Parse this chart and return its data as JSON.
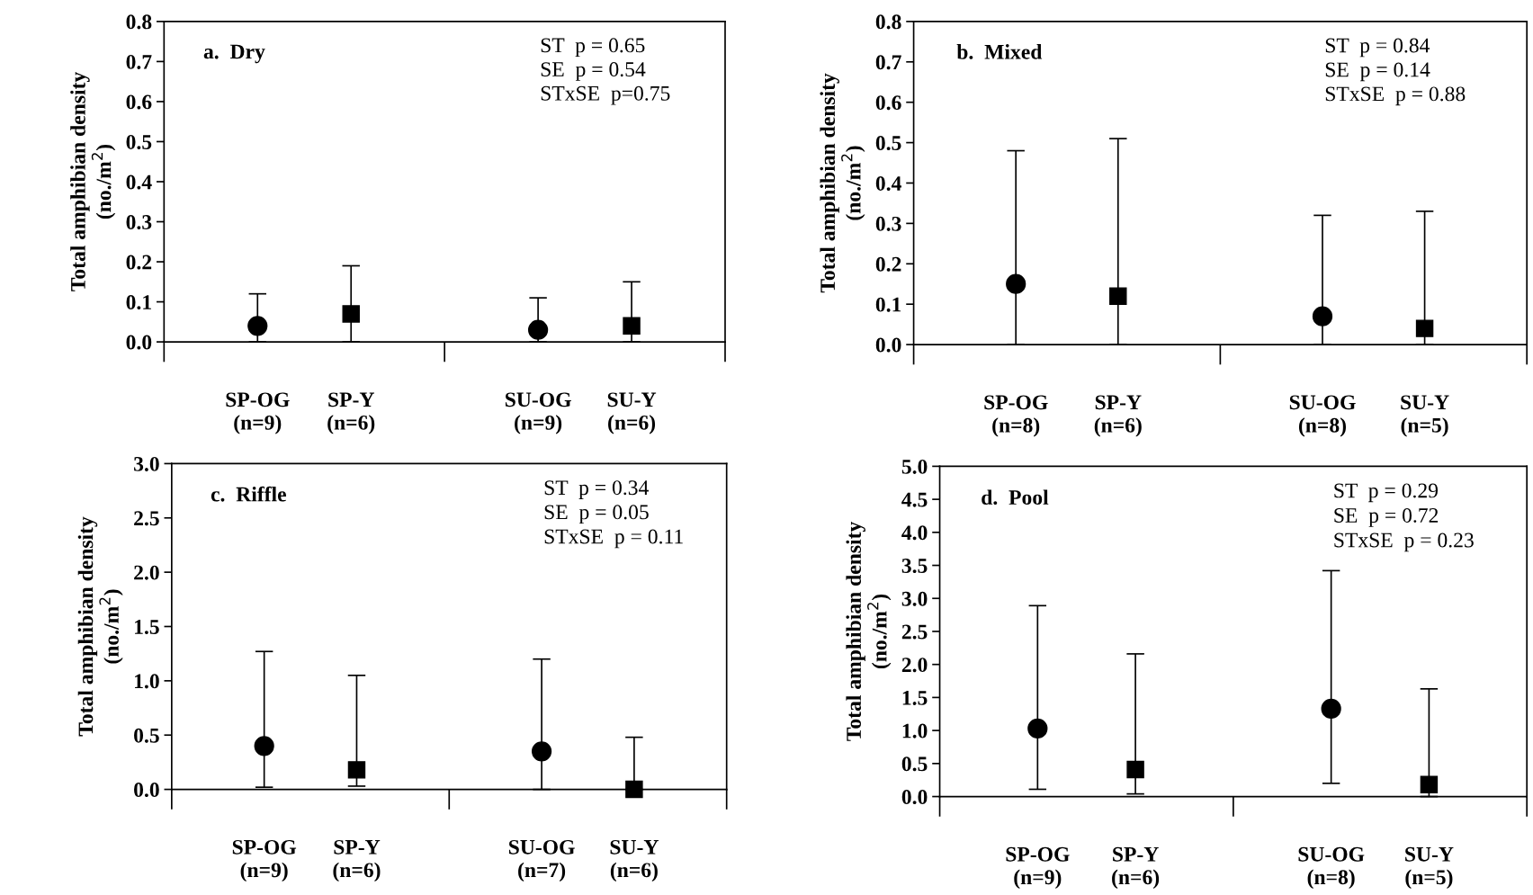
{
  "chart_data": [
    {
      "type": "scatter",
      "title": "a.  Dry",
      "ylabel": "Total amphibian density\n(no./m$^{2}$)",
      "categories": [
        "SP-OG\n(n=9)",
        "SP-Y\n(n=6)",
        null,
        "SU-OG\n(n=9)",
        "SU-Y\n(n=6)"
      ],
      "ylim": [
        0,
        0.8
      ],
      "yticks": [
        {
          "value": 0,
          "label": "0.0"
        },
        0.1,
        0.2,
        0.3,
        0.4,
        0.5,
        0.6,
        0.7,
        0.8
      ],
      "annotations": [
        "ST  p = 0.65",
        "SE  p = 0.54",
        "STxSE  p=0.75"
      ],
      "series": [
        {
          "color": "#000000",
          "marker": "circle",
          "values": [
            0.04,
            null,
            null,
            0.03,
            null
          ],
          "errors": [
            [
              0.0,
              0.12
            ],
            null,
            null,
            [
              0.0,
              0.11
            ],
            null
          ]
        },
        {
          "color": "#000000",
          "marker": "square",
          "values": [
            null,
            0.07,
            null,
            null,
            0.04
          ],
          "errors": [
            null,
            [
              0.0,
              0.19
            ],
            null,
            null,
            [
              0.0,
              0.15
            ]
          ]
        }
      ]
    },
    {
      "type": "scatter",
      "title": "b.  Mixed",
      "ylabel": "Total amphibian density\n(no./m$^{2}$)",
      "categories": [
        "SP-OG\n(n=8)",
        "SP-Y\n(n=6)",
        null,
        "SU-OG\n(n=8)",
        "SU-Y\n(n=5)"
      ],
      "ylim": [
        0,
        0.8
      ],
      "yticks": [
        {
          "value": 0,
          "label": "0.0"
        },
        0.1,
        0.2,
        0.3,
        0.4,
        0.5,
        0.6,
        0.7,
        0.8
      ],
      "annotations": [
        "ST  p = 0.84",
        "SE  p = 0.14",
        "STxSE  p = 0.88"
      ],
      "series": [
        {
          "color": "#000000",
          "marker": "circle",
          "values": [
            0.15,
            null,
            null,
            0.07,
            null
          ],
          "errors": [
            [
              0.0,
              0.48
            ],
            null,
            null,
            [
              0.0,
              0.32
            ],
            null
          ]
        },
        {
          "color": "#000000",
          "marker": "square",
          "values": [
            null,
            0.12,
            null,
            null,
            0.04
          ],
          "errors": [
            null,
            [
              0.0,
              0.51
            ],
            null,
            null,
            [
              0.0,
              0.33
            ]
          ]
        }
      ]
    },
    {
      "type": "scatter",
      "title": "c.  Riffle",
      "ylabel": "Total amphibian density\n(no./m$^{2}$)",
      "categories": [
        "SP-OG\n(n=9)",
        "SP-Y\n(n=6)",
        null,
        "SU-OG\n(n=7)",
        "SU-Y\n(n=6)"
      ],
      "ylim": [
        0,
        3.0
      ],
      "yticks": [
        {
          "value": 0,
          "label": "0.0"
        },
        0.5,
        {
          "value": 1,
          "label": "1.0"
        },
        1.5,
        {
          "value": 2,
          "label": "2.0"
        },
        2.5,
        {
          "value": 3,
          "label": "3.0"
        }
      ],
      "annotations": [
        "ST  p = 0.34",
        "SE  p = 0.05",
        "STxSE  p = 0.11"
      ],
      "series": [
        {
          "color": "#000000",
          "marker": "circle",
          "values": [
            0.4,
            null,
            null,
            0.35,
            null
          ],
          "errors": [
            [
              0.02,
              1.27
            ],
            null,
            null,
            [
              0.0,
              1.2
            ],
            null
          ]
        },
        {
          "color": "#000000",
          "marker": "square",
          "values": [
            null,
            0.18,
            null,
            null,
            0.0
          ],
          "errors": [
            null,
            [
              0.03,
              1.05
            ],
            null,
            null,
            [
              0.0,
              0.48
            ]
          ]
        }
      ]
    },
    {
      "type": "scatter",
      "title": "d.  Pool",
      "ylabel": "Total amphibian density\n(no./m$^{2}$)",
      "categories": [
        "SP-OG\n(n=9)",
        "SP-Y\n(n=6)",
        null,
        "SU-OG\n(n=8)",
        "SU-Y\n(n=5)"
      ],
      "ylim": [
        0,
        5.0
      ],
      "yticks": [
        {
          "value": 0,
          "label": "0.0"
        },
        0.5,
        {
          "value": 1,
          "label": "1.0"
        },
        1.5,
        {
          "value": 2,
          "label": "2.0"
        },
        2.5,
        {
          "value": 3,
          "label": "3.0"
        },
        3.5,
        {
          "value": 4,
          "label": "4.0"
        },
        4.5,
        {
          "value": 5,
          "label": "5.0"
        }
      ],
      "annotations": [
        "ST  p = 0.29",
        "SE  p = 0.72",
        "STxSE  p = 0.23"
      ],
      "series": [
        {
          "color": "#000000",
          "marker": "circle",
          "values": [
            1.03,
            null,
            null,
            1.33,
            null
          ],
          "errors": [
            [
              0.11,
              2.89
            ],
            null,
            null,
            [
              0.2,
              3.42
            ],
            null
          ]
        },
        {
          "color": "#000000",
          "marker": "square",
          "values": [
            null,
            0.41,
            null,
            null,
            0.18
          ],
          "errors": [
            null,
            [
              0.04,
              2.16
            ],
            null,
            null,
            [
              0.0,
              1.63
            ]
          ]
        }
      ]
    }
  ]
}
